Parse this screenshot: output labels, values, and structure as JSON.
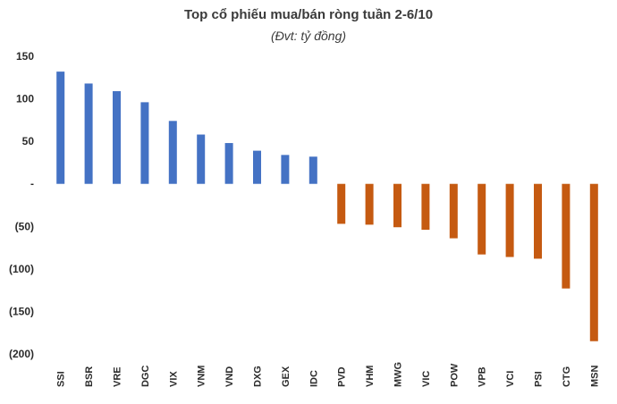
{
  "chart_data": {
    "type": "bar",
    "title": "Top cổ phiếu mua/bán ròng tuần 2-6/10",
    "subtitle": "(Đvt: tỷ đồng)",
    "xlabel": "",
    "ylabel": "",
    "ylim": [
      -200,
      150
    ],
    "yticks": [
      150,
      100,
      50,
      0,
      -50,
      -100,
      -150,
      -200
    ],
    "ytick_labels": [
      "150",
      "100",
      "50",
      "-",
      "(50)",
      "(100)",
      "(150)",
      "(200)"
    ],
    "grid": false,
    "legend": "none",
    "categories": [
      "SSI",
      "BSR",
      "VRE",
      "DGC",
      "VIX",
      "VNM",
      "VND",
      "DXG",
      "GEX",
      "IDC",
      "PVD",
      "VHM",
      "MWG",
      "VIC",
      "POW",
      "VPB",
      "VCI",
      "PSI",
      "CTG",
      "MSN"
    ],
    "values": [
      132,
      118,
      109,
      96,
      74,
      58,
      48,
      39,
      34,
      32,
      -47,
      -48,
      -51,
      -54,
      -64,
      -83,
      -86,
      -88,
      -123,
      -185
    ],
    "positive_color": "#4472C4",
    "negative_color": "#C55A11"
  }
}
